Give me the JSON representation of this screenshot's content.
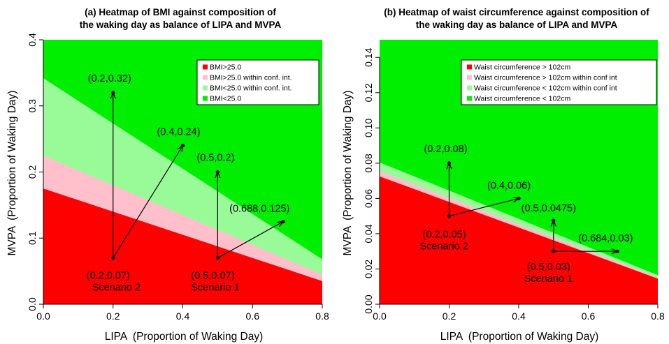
{
  "chart_data": [
    {
      "type": "heatmap",
      "title_lines": [
        "(a) Heatmap of BMI against composition of",
        "the waking day as balance of LIPA and MVPA"
      ],
      "xlabel": "LIPA  (Proportion of Waking Day)",
      "ylabel": "MVPA  (Proportion of Waking Day)",
      "xlim": [
        0,
        0.8
      ],
      "ylim": [
        0,
        0.4
      ],
      "x_ticks": [
        0.0,
        0.2,
        0.4,
        0.6,
        0.8
      ],
      "x_tick_labels": [
        "0.0",
        "0.2",
        "0.4",
        "0.6",
        "0.8"
      ],
      "y_ticks": [
        0.0,
        0.1,
        0.2,
        0.3,
        0.4
      ],
      "y_tick_labels": [
        "0.0",
        "0.1",
        "0.2",
        "0.3",
        "0.4"
      ],
      "legend_position": "top-right",
      "legend": [
        {
          "label": "BMI>25.0",
          "color": "#ff0000"
        },
        {
          "label": "BMI>25.0 within conf. int.",
          "color": "#ffc0cb"
        },
        {
          "label": "BMI<25.0 within conf. int.",
          "color": "#98fb98"
        },
        {
          "label": "BMI<25.0",
          "color": "#00ee00"
        }
      ],
      "regions": [
        {
          "name": "BMI>25.0",
          "color": "#ff0000",
          "boundary_y_at_x0": 0.175,
          "boundary_y_at_x08": 0.035
        },
        {
          "name": "BMI>25.0 within conf. int.",
          "color": "#ffc0cb",
          "boundary_y_at_x0": 0.225,
          "boundary_y_at_x08": 0.045
        },
        {
          "name": "BMI<25.0 within conf. int.",
          "color": "#98fb98",
          "boundary_y_at_x0": 0.342,
          "boundary_y_at_x08": 0.068
        },
        {
          "name": "BMI<25.0",
          "color": "#00ee00"
        }
      ],
      "points": [
        {
          "x": 0.2,
          "y": 0.32,
          "label": "(0.2,0.32)"
        },
        {
          "x": 0.4,
          "y": 0.24,
          "label": "(0.4,0.24)"
        },
        {
          "x": 0.5,
          "y": 0.2,
          "label": "(0.5,0.2)"
        },
        {
          "x": 0.688,
          "y": 0.125,
          "label": "(0.688,0.125)"
        },
        {
          "x": 0.2,
          "y": 0.07,
          "label": "(0.2,0.07)",
          "caption": "Scenario 2"
        },
        {
          "x": 0.5,
          "y": 0.07,
          "label": "(0.5,0.07)",
          "caption": "Scenario 1"
        }
      ],
      "arrows": [
        {
          "from": [
            0.2,
            0.07
          ],
          "to": [
            0.2,
            0.32
          ]
        },
        {
          "from": [
            0.2,
            0.07
          ],
          "to": [
            0.4,
            0.24
          ]
        },
        {
          "from": [
            0.5,
            0.07
          ],
          "to": [
            0.5,
            0.2
          ]
        },
        {
          "from": [
            0.5,
            0.07
          ],
          "to": [
            0.688,
            0.125
          ]
        }
      ]
    },
    {
      "type": "heatmap",
      "title_lines": [
        "(b) Heatmap of waist circumference against composition of",
        "the waking day as balance of LIPA and MVPA"
      ],
      "xlabel": "LIPA  (Proportion of Waking Day)",
      "ylabel": "MVPA  (Proportion of Waking Day)",
      "xlim": [
        0,
        0.8
      ],
      "ylim": [
        0,
        0.15
      ],
      "x_ticks": [
        0.0,
        0.2,
        0.4,
        0.6,
        0.8
      ],
      "x_tick_labels": [
        "0.0",
        "0.2",
        "0.4",
        "0.6",
        "0.8"
      ],
      "y_ticks": [
        0.0,
        0.02,
        0.04,
        0.06,
        0.08,
        0.1,
        0.12,
        0.14
      ],
      "y_tick_labels": [
        "0.00",
        "0.02",
        "0.04",
        "0.06",
        "0.08",
        "0.10",
        "0.12",
        "0.14"
      ],
      "legend_position": "top-right",
      "legend": [
        {
          "label": "Waist circumference > 102cm",
          "color": "#ff0000"
        },
        {
          "label": "Waist circumference > 102cm within conf int",
          "color": "#ffc0cb"
        },
        {
          "label": "Waist circumference < 102cm within conf int",
          "color": "#98fb98"
        },
        {
          "label": "Waist circumference < 102cm",
          "color": "#00ee00"
        }
      ],
      "regions": [
        {
          "name": "Waist circumference > 102cm",
          "color": "#ff0000",
          "boundary_y_at_x0": 0.0725,
          "boundary_y_at_x08": 0.0145
        },
        {
          "name": "Waist circumference > 102cm within conf int",
          "color": "#ffc0cb",
          "boundary_y_at_x0": 0.0755,
          "boundary_y_at_x08": 0.0153
        },
        {
          "name": "Waist circumference < 102cm within conf int",
          "color": "#98fb98",
          "boundary_y_at_x0": 0.0805,
          "boundary_y_at_x08": 0.0165
        },
        {
          "name": "Waist circumference < 102cm",
          "color": "#00ee00"
        }
      ],
      "points": [
        {
          "x": 0.2,
          "y": 0.08,
          "label": "(0.2,0.08)"
        },
        {
          "x": 0.4,
          "y": 0.06,
          "label": "(0.4,0.06)"
        },
        {
          "x": 0.5,
          "y": 0.0475,
          "label": "(0.5,0.0475)"
        },
        {
          "x": 0.684,
          "y": 0.03,
          "label": "(0.684,0.03)"
        },
        {
          "x": 0.2,
          "y": 0.05,
          "label": "(0.2,0.05)",
          "caption": "Scenario 2"
        },
        {
          "x": 0.5,
          "y": 0.03,
          "label": "(0.5,0.03)",
          "caption": "Scenario 1"
        }
      ],
      "arrows": [
        {
          "from": [
            0.2,
            0.05
          ],
          "to": [
            0.2,
            0.08
          ]
        },
        {
          "from": [
            0.2,
            0.05
          ],
          "to": [
            0.4,
            0.06
          ]
        },
        {
          "from": [
            0.5,
            0.03
          ],
          "to": [
            0.5,
            0.0475
          ]
        },
        {
          "from": [
            0.5,
            0.03
          ],
          "to": [
            0.684,
            0.03
          ]
        }
      ]
    }
  ]
}
